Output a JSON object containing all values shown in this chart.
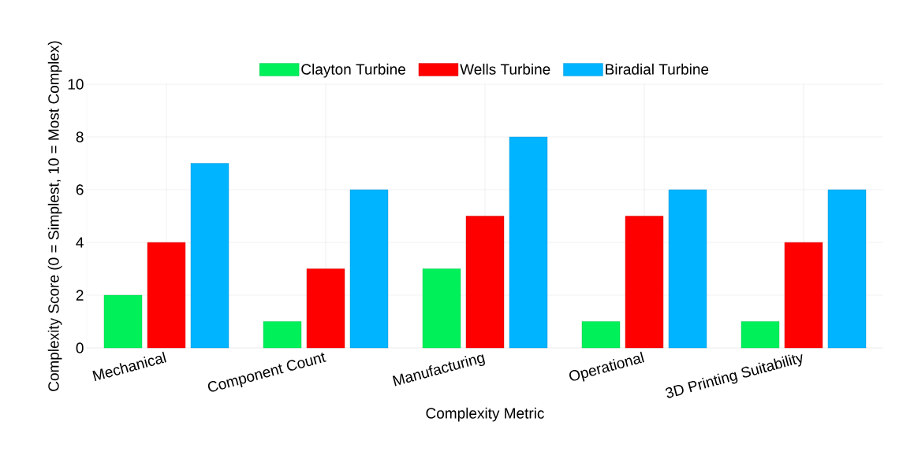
{
  "chart_data": {
    "type": "bar",
    "xlabel": "Complexity Metric",
    "ylabel": "Complexity Score (0 = Simplest, 10 = Most Complex)",
    "categories": [
      "Mechanical",
      "Component Count",
      "Manufacturing",
      "Operational",
      "3D Printing Suitability"
    ],
    "series": [
      {
        "name": "Clayton Turbine",
        "color": "#00f05a",
        "values": [
          2,
          1,
          3,
          1,
          1
        ]
      },
      {
        "name": "Wells Turbine",
        "color": "#ff0000",
        "values": [
          4,
          3,
          5,
          5,
          4
        ]
      },
      {
        "name": "Biradial Turbine",
        "color": "#00b4ff",
        "values": [
          7,
          6,
          8,
          6,
          6
        ]
      }
    ],
    "ylim": [
      0,
      10
    ],
    "yticks": [
      0,
      2,
      4,
      6,
      8,
      10
    ],
    "grid": true,
    "legend": "top"
  }
}
